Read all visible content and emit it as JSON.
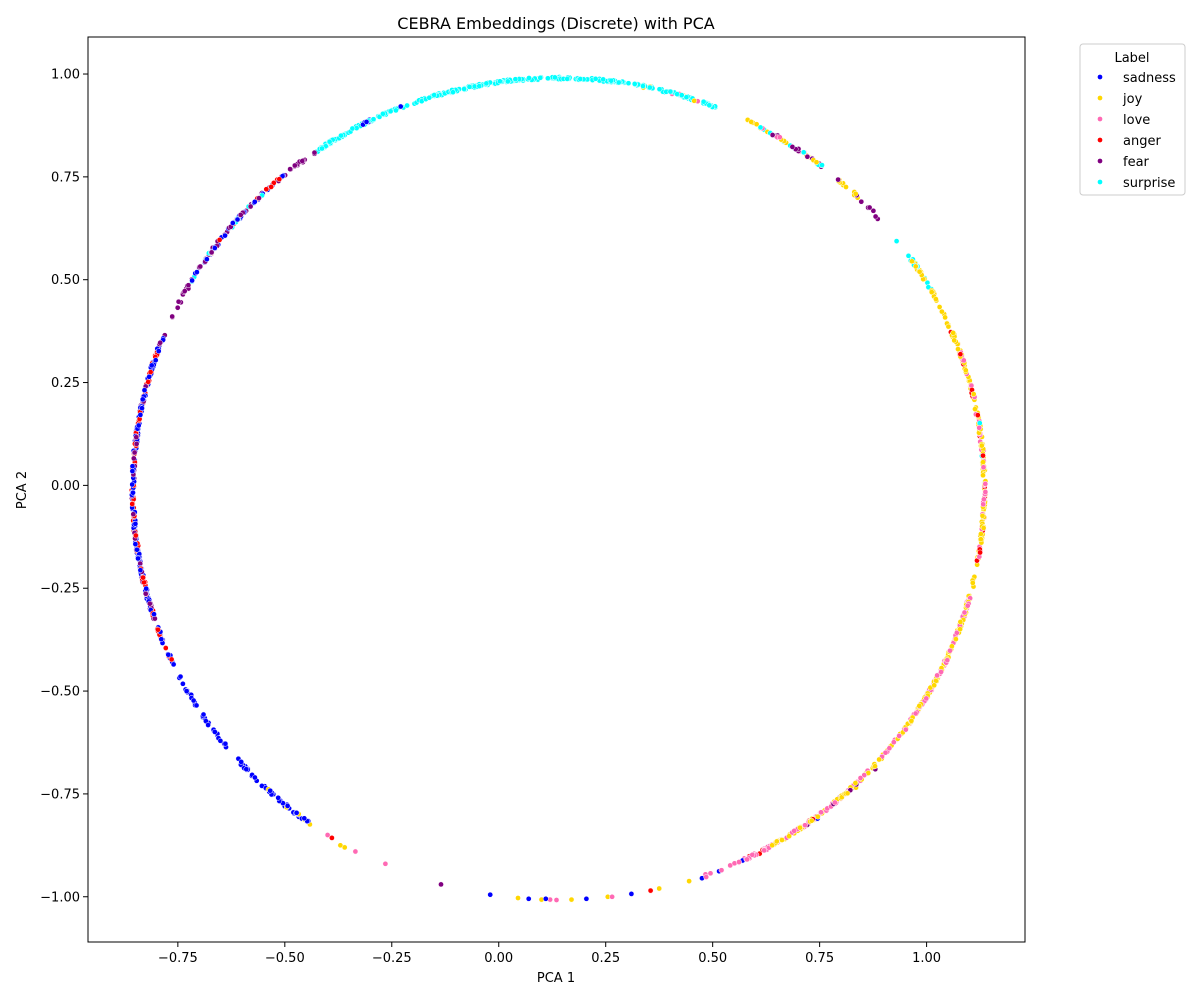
{
  "chart_data": {
    "type": "scatter",
    "title": "CEBRA Embeddings (Discrete) with PCA",
    "xlabel": "PCA 1",
    "ylabel": "PCA 2",
    "xlim": [
      -0.96,
      1.23
    ],
    "ylim": [
      -1.11,
      1.09
    ],
    "xticks": [
      -0.75,
      -0.5,
      -0.25,
      0.0,
      0.25,
      0.5,
      0.75,
      1.0
    ],
    "xtick_labels": [
      "−0.75",
      "−0.50",
      "−0.25",
      "0.00",
      "0.25",
      "0.50",
      "0.75",
      "1.00"
    ],
    "yticks": [
      -1.0,
      -0.75,
      -0.5,
      -0.25,
      0.0,
      0.25,
      0.5,
      0.75,
      1.0
    ],
    "ytick_labels": [
      "−1.00",
      "−0.75",
      "−0.50",
      "−0.25",
      "0.00",
      "0.25",
      "0.50",
      "0.75",
      "1.00"
    ],
    "grid": false,
    "legend": {
      "title": "Label",
      "placement": "outside-top-right"
    },
    "ring": {
      "center_x": 0.14,
      "center_y": -0.01,
      "radius_x": 0.995,
      "radius_y": 1.0
    },
    "series": [
      {
        "name": "sadness",
        "color": "#0000ff",
        "angle_ranges_deg": [
          [
            110,
            120
          ],
          [
            130,
            150
          ],
          [
            158,
            205
          ],
          [
            205,
            235
          ]
        ],
        "weights": [
          0.4,
          1.2,
          2.2,
          1.6
        ],
        "sparse_points": [
          [
            -0.59,
            -0.69
          ],
          [
            -0.57,
            -0.71
          ],
          [
            -0.5,
            -0.78
          ],
          [
            -0.49,
            -0.785
          ],
          [
            -0.48,
            -0.795
          ],
          [
            -0.46,
            -0.81
          ],
          [
            -0.02,
            -0.995
          ],
          [
            0.07,
            -1.005
          ],
          [
            0.11,
            -1.005
          ],
          [
            0.205,
            -1.005
          ],
          [
            0.31,
            -0.993
          ],
          [
            0.475,
            -0.955
          ],
          [
            0.515,
            -0.938
          ],
          [
            0.57,
            -0.912
          ],
          [
            0.745,
            -0.81
          ]
        ]
      },
      {
        "name": "joy",
        "color": "#ffd700",
        "angle_ranges_deg": [
          [
            300,
            360
          ],
          [
            0,
            35
          ],
          [
            45,
            65
          ],
          [
            70,
            80
          ],
          [
            225,
            235
          ]
        ],
        "weights": [
          2.2,
          2.0,
          1.0,
          0.4,
          0.3
        ],
        "sparse_points": [
          [
            -0.37,
            -0.875
          ],
          [
            -0.36,
            -0.88
          ],
          [
            0.045,
            -1.003
          ],
          [
            0.1,
            -1.007
          ],
          [
            0.17,
            -1.007
          ],
          [
            0.255,
            -1.0
          ],
          [
            0.375,
            -0.98
          ],
          [
            0.445,
            -0.962
          ],
          [
            0.71,
            -0.83
          ],
          [
            0.835,
            -0.735
          ]
        ]
      },
      {
        "name": "love",
        "color": "#ff69b4",
        "angle_ranges_deg": [
          [
            290,
            345
          ],
          [
            350,
            360
          ],
          [
            0,
            20
          ],
          [
            52,
            62
          ],
          [
            70,
            78
          ]
        ],
        "weights": [
          1.8,
          0.9,
          0.9,
          0.4,
          0.3
        ],
        "sparse_points": [
          [
            -0.4,
            -0.85
          ],
          [
            -0.335,
            -0.89
          ],
          [
            -0.265,
            -0.92
          ],
          [
            0.12,
            -1.007
          ],
          [
            0.135,
            -1.008
          ],
          [
            0.265,
            -1.0
          ],
          [
            0.485,
            -0.952
          ],
          [
            0.655,
            -0.865
          ]
        ]
      },
      {
        "name": "anger",
        "color": "#ff0000",
        "angle_ranges_deg": [
          [
            160,
            205
          ],
          [
            130,
            145
          ],
          [
            350,
            360
          ],
          [
            0,
            25
          ],
          [
            295,
            310
          ]
        ],
        "weights": [
          1.4,
          0.5,
          0.5,
          0.5,
          0.4
        ],
        "sparse_points": [
          [
            -0.515,
            -0.76
          ],
          [
            -0.45,
            -0.815
          ],
          [
            -0.39,
            -0.857
          ],
          [
            0.355,
            -0.985
          ],
          [
            0.61,
            -0.895
          ],
          [
            0.785,
            -0.77
          ]
        ]
      },
      {
        "name": "fear",
        "color": "#800080",
        "angle_ranges_deg": [
          [
            125,
            160
          ],
          [
            165,
            200
          ],
          [
            40,
            60
          ],
          [
            300,
            315
          ]
        ],
        "weights": [
          1.2,
          0.8,
          0.6,
          0.3
        ],
        "sparse_points": [
          [
            -0.135,
            -0.97
          ],
          [
            0.88,
            -0.69
          ]
        ]
      },
      {
        "name": "surprise",
        "color": "#00ffff",
        "angle_ranges_deg": [
          [
            68,
            125
          ],
          [
            50,
            62
          ],
          [
            25,
            40
          ],
          [
            130,
            150
          ],
          [
            0,
            10
          ]
        ],
        "weights": [
          3.4,
          0.6,
          0.6,
          0.4,
          0.3
        ],
        "sparse_points": []
      }
    ]
  }
}
